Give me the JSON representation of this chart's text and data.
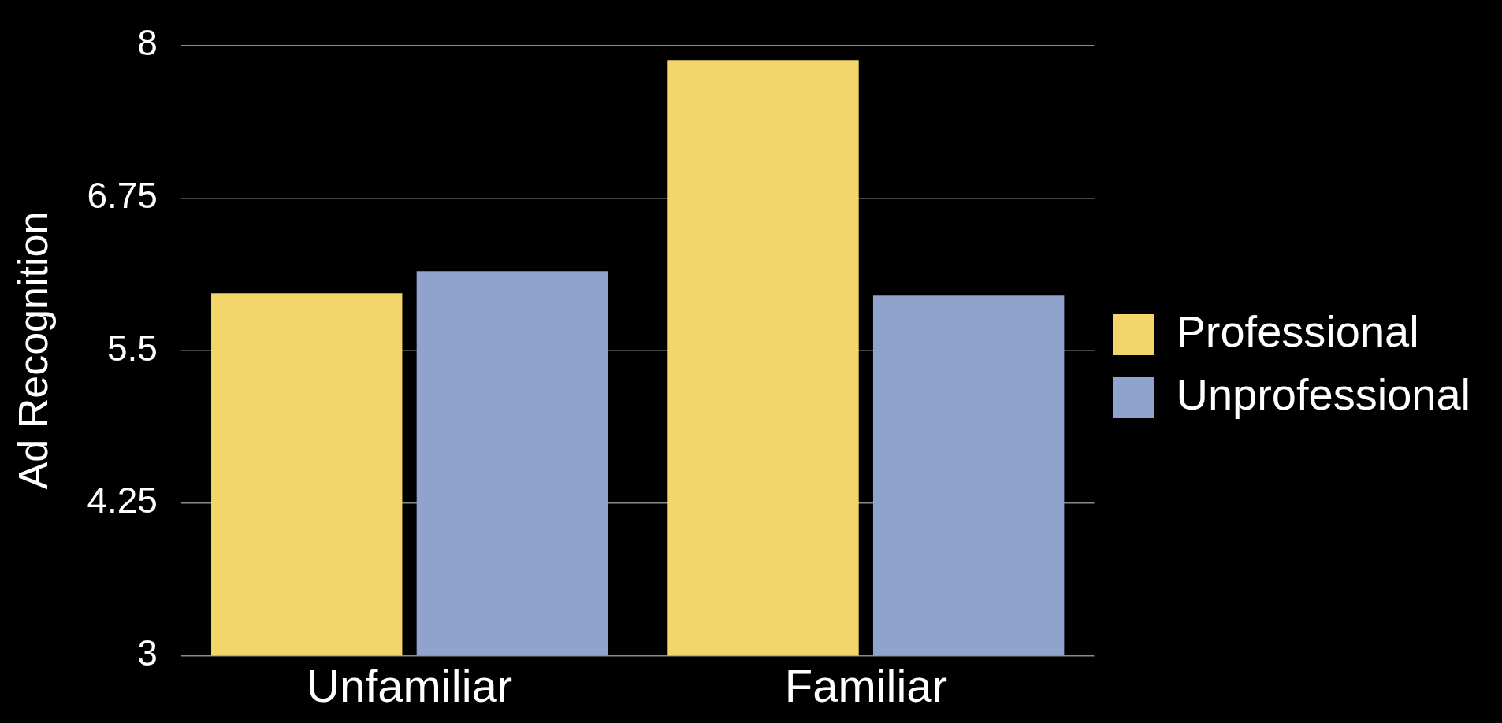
{
  "chart_data": {
    "type": "bar",
    "ylabel": "Ad Recognition",
    "categories": [
      "Unfamiliar",
      "Familiar"
    ],
    "series": [
      {
        "name": "Professional",
        "color": "#f2d66a",
        "values": [
          5.97,
          7.88
        ]
      },
      {
        "name": "Unprofessional",
        "color": "#8fa3cc",
        "values": [
          6.15,
          5.95
        ]
      }
    ],
    "ylim": [
      3,
      8
    ],
    "yticks": [
      3,
      4.25,
      5.5,
      6.75,
      8
    ],
    "grid": "y",
    "legend": "right"
  }
}
